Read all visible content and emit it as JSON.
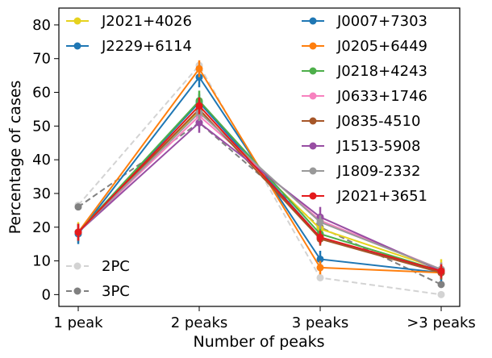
{
  "chart_data": {
    "type": "line",
    "title": "",
    "xlabel": "Number of peaks",
    "ylabel": "Percentage of cases",
    "categories": [
      "1 peak",
      "2 peaks",
      "3 peaks",
      ">3 peaks"
    ],
    "ylim": [
      -3.5,
      85
    ],
    "yticks": [
      0,
      10,
      20,
      30,
      40,
      50,
      60,
      70,
      80
    ],
    "grid": false,
    "series": [
      {
        "name": "J2021+4026",
        "color": "#e6d21e",
        "style": "solid",
        "values": [
          18.5,
          54.5,
          19.5,
          7.5
        ],
        "errors": [
          3,
          3,
          2.5,
          3
        ]
      },
      {
        "name": "J2229+6114",
        "color": "#1f77b4",
        "style": "solid",
        "values": [
          18,
          64.5,
          10.5,
          6.5
        ],
        "errors": [
          3,
          3,
          2.5,
          2.5
        ]
      },
      {
        "name": "J0007+7303",
        "color": "#1f77b4",
        "style": "solid",
        "values": [
          18.5,
          57,
          17,
          6.5
        ],
        "errors": [
          2.5,
          2.5,
          2,
          2
        ]
      },
      {
        "name": "J0205+6449",
        "color": "#ff7f0e",
        "style": "solid",
        "values": [
          18.5,
          67,
          8,
          6.5
        ],
        "errors": [
          2.5,
          2.5,
          2,
          2
        ]
      },
      {
        "name": "J0218+4243",
        "color": "#4daf4a",
        "style": "solid",
        "values": [
          18.5,
          57.5,
          18,
          7
        ],
        "errors": [
          2.5,
          3,
          2,
          2
        ]
      },
      {
        "name": "J0633+1746",
        "color": "#f781bf",
        "style": "solid",
        "values": [
          18.5,
          53,
          22,
          7.5
        ],
        "errors": [
          2.5,
          2.5,
          2,
          2
        ]
      },
      {
        "name": "J0835-4510",
        "color": "#a65628",
        "style": "solid",
        "values": [
          18.5,
          55,
          16.5,
          6.5
        ],
        "errors": [
          2.5,
          2.5,
          2,
          2
        ]
      },
      {
        "name": "J1513-5908",
        "color": "#984ea3",
        "style": "solid",
        "values": [
          18.5,
          51,
          23,
          7
        ],
        "errors": [
          2.5,
          3,
          3,
          2
        ]
      },
      {
        "name": "J1809-2332",
        "color": "#999999",
        "style": "solid",
        "values": [
          18.5,
          54,
          21.5,
          7.5
        ],
        "errors": [
          2.5,
          2.5,
          2,
          2
        ]
      },
      {
        "name": "J2021+3651",
        "color": "#e41a1c",
        "style": "solid",
        "values": [
          18.5,
          56,
          17,
          7
        ],
        "errors": [
          2.5,
          2.5,
          2,
          2
        ]
      },
      {
        "name": "2PC",
        "color": "#d3d3d3",
        "style": "dashed",
        "values": [
          26.5,
          68,
          5,
          0
        ],
        "errors": [
          0,
          0,
          0,
          0
        ]
      },
      {
        "name": "3PC",
        "color": "#808080",
        "style": "dashed",
        "values": [
          26,
          51,
          20,
          3
        ],
        "errors": [
          0,
          0,
          0,
          0
        ]
      }
    ],
    "legend": {
      "placement": "top",
      "left_column": [
        "J2021+4026",
        "J2229+6114"
      ],
      "right_column": [
        "J0007+7303",
        "J0205+6449",
        "J0218+4243",
        "J0633+1746",
        "J0835-4510",
        "J1513-5908",
        "J1809-2332",
        "J2021+3651"
      ],
      "bottom_left": [
        "2PC",
        "3PC"
      ]
    }
  }
}
